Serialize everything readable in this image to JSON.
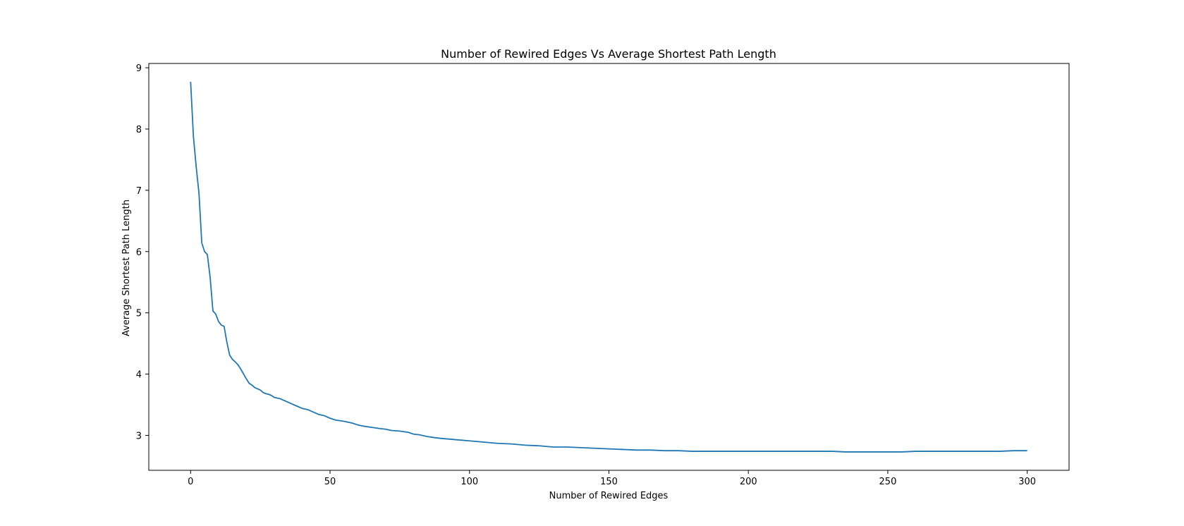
{
  "chart_data": {
    "type": "line",
    "title": "Number of Rewired Edges Vs Average Shortest Path Length",
    "xlabel": "Number of Rewired Edges",
    "ylabel": "Average Shortest Path Length",
    "xlim": [
      -15,
      315
    ],
    "ylim": [
      2.43,
      9.07
    ],
    "xticks": [
      0,
      50,
      100,
      150,
      200,
      250,
      300
    ],
    "yticks": [
      3,
      4,
      5,
      6,
      7,
      8,
      9
    ],
    "grid": false,
    "line_color": "#1f77b4",
    "series": [
      {
        "x": [
          0,
          1,
          2,
          3,
          4,
          5,
          6,
          7,
          8,
          9,
          10,
          11,
          12,
          13,
          14,
          15,
          16,
          17,
          18,
          19,
          20,
          21,
          22,
          23,
          24,
          25,
          26,
          27,
          28,
          29,
          30,
          32,
          34,
          36,
          38,
          40,
          42,
          44,
          46,
          48,
          50,
          52,
          55,
          58,
          60,
          62,
          65,
          68,
          70,
          72,
          75,
          78,
          80,
          82,
          85,
          88,
          90,
          95,
          100,
          105,
          110,
          115,
          120,
          125,
          130,
          135,
          140,
          145,
          150,
          155,
          160,
          165,
          170,
          175,
          180,
          185,
          190,
          195,
          200,
          205,
          210,
          215,
          220,
          225,
          230,
          235,
          240,
          245,
          250,
          255,
          260,
          265,
          270,
          275,
          280,
          285,
          290,
          295,
          300
        ],
        "y": [
          8.77,
          7.88,
          7.38,
          6.95,
          6.14,
          6.0,
          5.95,
          5.58,
          5.03,
          4.98,
          4.86,
          4.8,
          4.78,
          4.52,
          4.31,
          4.24,
          4.2,
          4.15,
          4.08,
          4.0,
          3.92,
          3.85,
          3.82,
          3.78,
          3.76,
          3.74,
          3.7,
          3.68,
          3.67,
          3.65,
          3.62,
          3.6,
          3.56,
          3.52,
          3.48,
          3.44,
          3.42,
          3.38,
          3.34,
          3.32,
          3.28,
          3.25,
          3.23,
          3.2,
          3.17,
          3.15,
          3.13,
          3.11,
          3.1,
          3.08,
          3.07,
          3.05,
          3.02,
          3.01,
          2.98,
          2.96,
          2.95,
          2.93,
          2.91,
          2.89,
          2.87,
          2.86,
          2.84,
          2.83,
          2.81,
          2.81,
          2.8,
          2.79,
          2.78,
          2.77,
          2.76,
          2.76,
          2.75,
          2.75,
          2.74,
          2.74,
          2.74,
          2.74,
          2.74,
          2.74,
          2.74,
          2.74,
          2.74,
          2.74,
          2.74,
          2.73,
          2.73,
          2.73,
          2.73,
          2.73,
          2.74,
          2.74,
          2.74,
          2.74,
          2.74,
          2.74,
          2.74,
          2.75,
          2.75
        ]
      }
    ]
  }
}
